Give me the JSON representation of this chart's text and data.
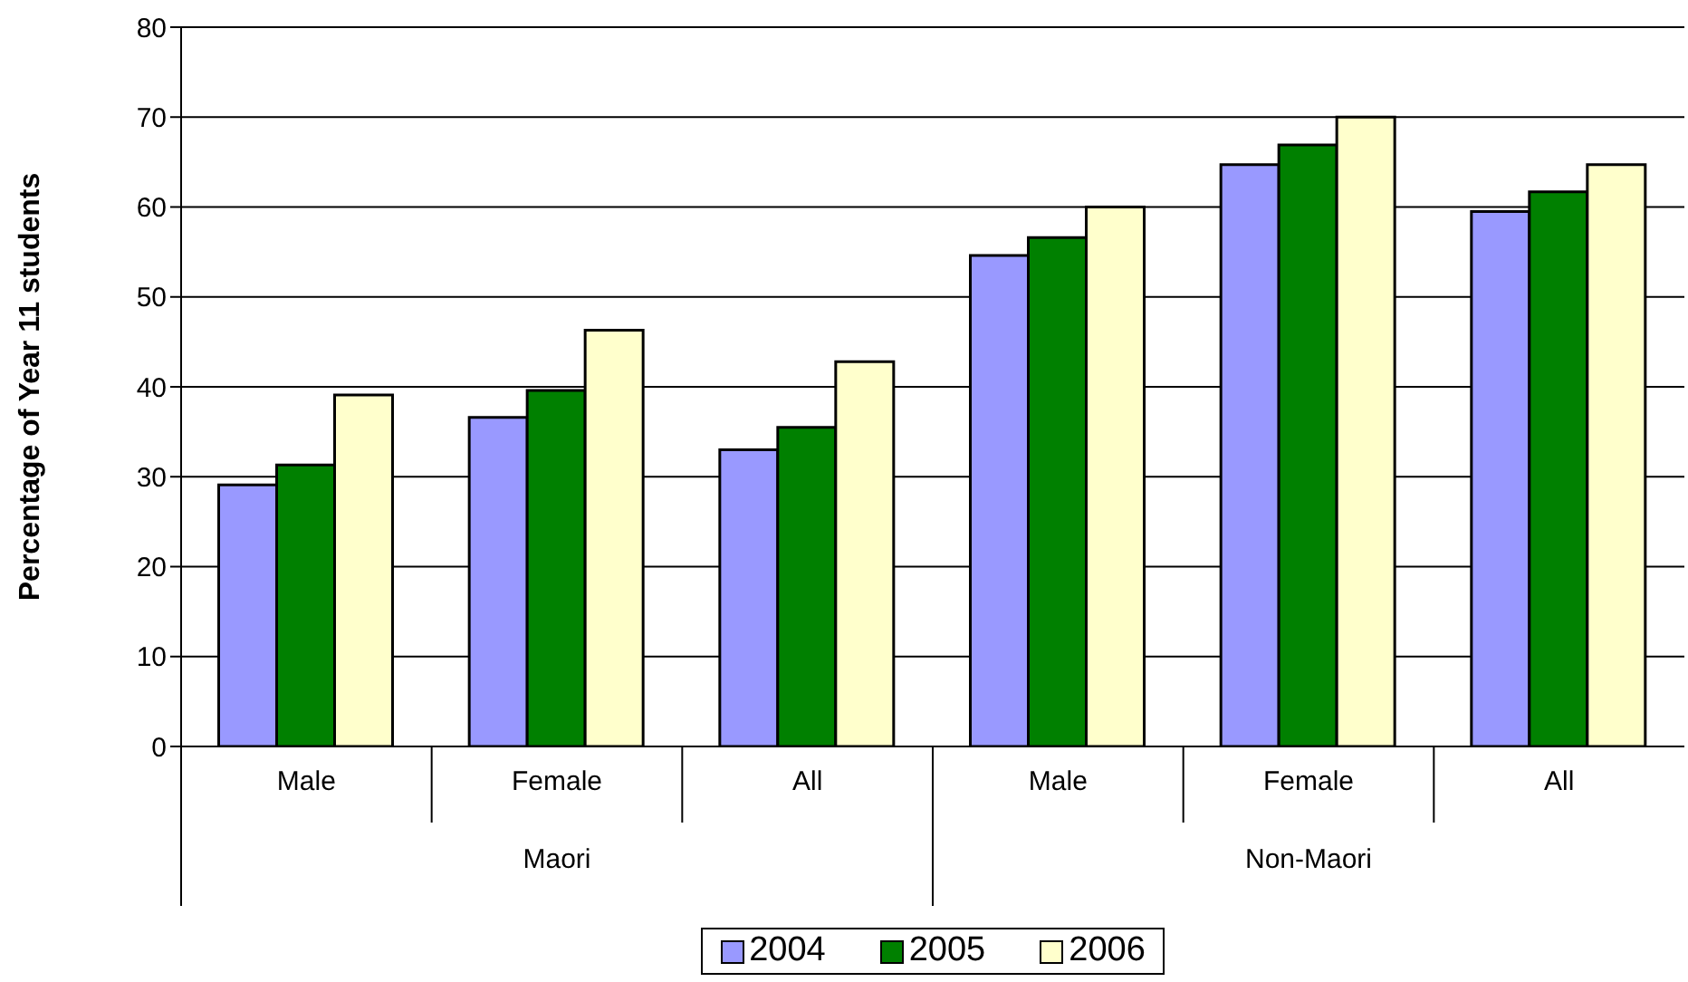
{
  "chart_data": {
    "type": "bar",
    "ylabel": "Percentage of Year 11 students",
    "categories": [
      "Male",
      "Female",
      "All",
      "Male",
      "Female",
      "All"
    ],
    "annotations": [
      "Maori",
      "Non-Maori"
    ],
    "series": [
      {
        "name": "2004",
        "color": "#9999ff",
        "values": [
          29.1,
          36.6,
          33.0,
          54.6,
          64.7,
          59.5
        ]
      },
      {
        "name": "2005",
        "color": "#008000",
        "values": [
          31.3,
          39.6,
          35.5,
          56.6,
          66.9,
          61.7
        ]
      },
      {
        "name": "2006",
        "color": "#ffffcc",
        "values": [
          39.1,
          46.3,
          42.8,
          60.0,
          70.0,
          64.7
        ]
      }
    ],
    "ylim": [
      0,
      80
    ],
    "yticks": [
      0,
      10,
      20,
      30,
      40,
      50,
      60,
      70,
      80
    ],
    "grid": "y",
    "legend": "bottom"
  }
}
